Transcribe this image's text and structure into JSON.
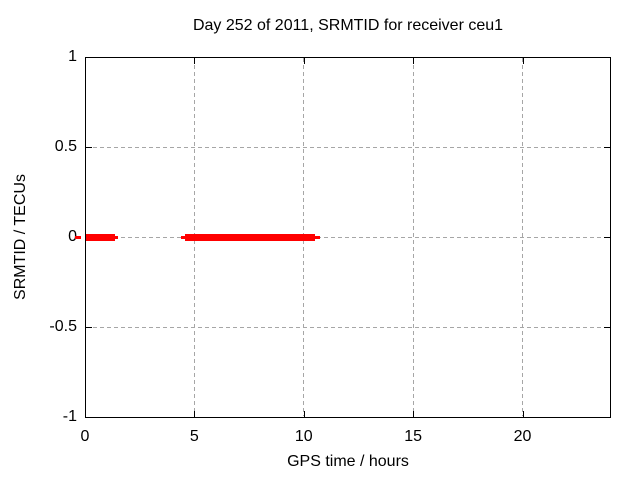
{
  "chart_data": {
    "type": "line",
    "title": "Day 252 of 2011, SRMTID for receiver ceu1",
    "xlabel": "GPS time / hours",
    "ylabel": "SRMTID / TECUs",
    "xlim": [
      0,
      24
    ],
    "ylim": [
      -1,
      1
    ],
    "xticks": [
      0,
      5,
      10,
      15,
      20
    ],
    "xtick_labels": [
      "0",
      "5",
      "10",
      "15",
      "20"
    ],
    "yticks": [
      1,
      0.5,
      0,
      -0.5,
      -1
    ],
    "ytick_labels": [
      "1",
      "0.5",
      "0",
      "-0.5",
      "-1"
    ],
    "grid": true,
    "legend": "none",
    "series": [
      {
        "name": "SRMTID",
        "color": "#ff0000",
        "y_value": 0,
        "description": "horizontal segments at y=0 TECUs indicating data coverage periods",
        "segments": [
          {
            "y": 0,
            "thin": [
              -0.46,
              -0.18
            ],
            "thick": null
          },
          {
            "y": 0,
            "thin": [
              0.05,
              1.52
            ],
            "thick": [
              0.05,
              1.37
            ]
          },
          {
            "y": 0,
            "thin": [
              4.39,
              10.74
            ],
            "thick": [
              4.57,
              10.51
            ]
          }
        ]
      }
    ],
    "colors": {
      "frame": "#000000",
      "grid": "#a6a6a6",
      "data": "#ff0000",
      "background": "#ffffff",
      "text": "#000000"
    }
  }
}
